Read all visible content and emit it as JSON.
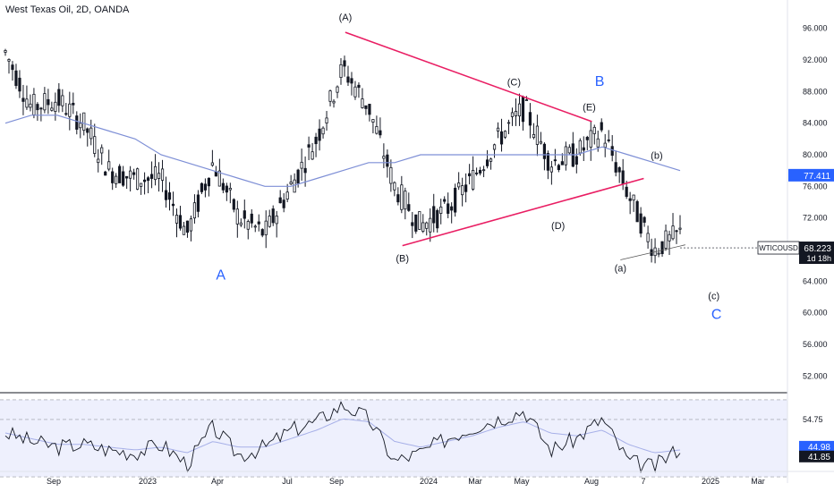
{
  "header": {
    "title": "West Texas Oil, 2D, OANDA"
  },
  "price_axis": {
    "ticks": [
      "96.000",
      "92.000",
      "88.000",
      "84.000",
      "80.000",
      "76.000",
      "72.000",
      "68.000",
      "64.000",
      "60.000",
      "56.000",
      "52.000"
    ],
    "ma_badge": "77.411",
    "symbol_badge": "WTICOUSD",
    "price_badge": "68.223",
    "countdown": "1d 18h"
  },
  "rsi_axis": {
    "ticks": [
      "54.75",
      "41.45"
    ],
    "signal_badge": "44.98",
    "rsi_badge": "41.85"
  },
  "time_axis": {
    "labels": [
      "Sep",
      "2023",
      "Apr",
      "Jul",
      "Sep",
      "2024",
      "Mar",
      "May",
      "Aug",
      "7",
      "2025",
      "Mar"
    ]
  },
  "annotations": {
    "labels": [
      "(A)",
      "(B)",
      "(C)",
      "(D)",
      "(E)",
      "(a)",
      "(b)",
      "(c)"
    ],
    "big_labels": [
      "A",
      "B",
      "C"
    ]
  },
  "colors": {
    "trendline": "#e91e63",
    "moving_average": "#7e8fd6",
    "wave_blue": "#2962ff",
    "candle": "#131722",
    "rsi_band_fill": "#eef0fd",
    "ma_badge_bg": "#2962ff",
    "price_badge_bg": "#131722"
  },
  "chart_data": [
    {
      "type": "line",
      "title": "West Texas Oil, 2D, OANDA",
      "xlabel": "",
      "ylabel": "",
      "ylim": [
        50,
        98
      ],
      "grid": false,
      "legend": "none",
      "x": [
        "2022-08",
        "2022-09",
        "2022-10",
        "2022-11",
        "2022-12",
        "2023-01",
        "2023-02",
        "2023-03",
        "2023-04",
        "2023-05",
        "2023-06",
        "2023-07",
        "2023-08",
        "2023-09",
        "2023-10",
        "2023-11",
        "2023-12",
        "2024-01",
        "2024-02",
        "2024-03",
        "2024-04",
        "2024-05",
        "2024-06",
        "2024-07",
        "2024-08",
        "2024-09",
        "2024-10"
      ],
      "series": [
        {
          "name": "",
          "values": [
            93,
            86,
            87,
            84,
            78,
            77,
            77,
            70,
            79,
            72,
            70,
            76,
            82,
            91,
            86,
            76,
            71,
            73,
            77,
            82,
            86,
            79,
            80,
            83,
            75,
            68,
            70
          ]
        },
        {
          "name": "",
          "values": [
            84,
            85,
            85,
            84,
            83,
            82,
            80,
            79,
            78,
            77,
            76,
            76,
            77,
            78,
            79,
            79,
            80,
            80,
            80,
            80,
            80,
            80,
            80,
            81,
            80,
            79,
            78
          ]
        }
      ],
      "last_price": 68.223,
      "ma_value": 77.411
    },
    {
      "type": "line",
      "ylim": [
        38,
        62
      ],
      "yticks": [
        54.75,
        41.45
      ],
      "series": [
        {
          "name": "",
          "values": [
            50,
            47,
            45,
            46,
            44,
            43,
            46,
            39,
            52,
            42,
            45,
            51,
            54,
            60,
            55,
            40,
            43,
            48,
            52,
            55,
            58,
            44,
            48,
            55,
            40,
            38,
            45
          ]
        },
        {
          "name": "",
          "values": [
            50,
            48,
            46,
            46,
            45,
            44,
            45,
            43,
            47,
            45,
            45,
            48,
            51,
            55,
            54,
            47,
            45,
            47,
            49,
            52,
            54,
            50,
            49,
            51,
            46,
            43,
            44
          ]
        }
      ],
      "rsi_value": 41.85,
      "signal_value": 44.98
    }
  ]
}
